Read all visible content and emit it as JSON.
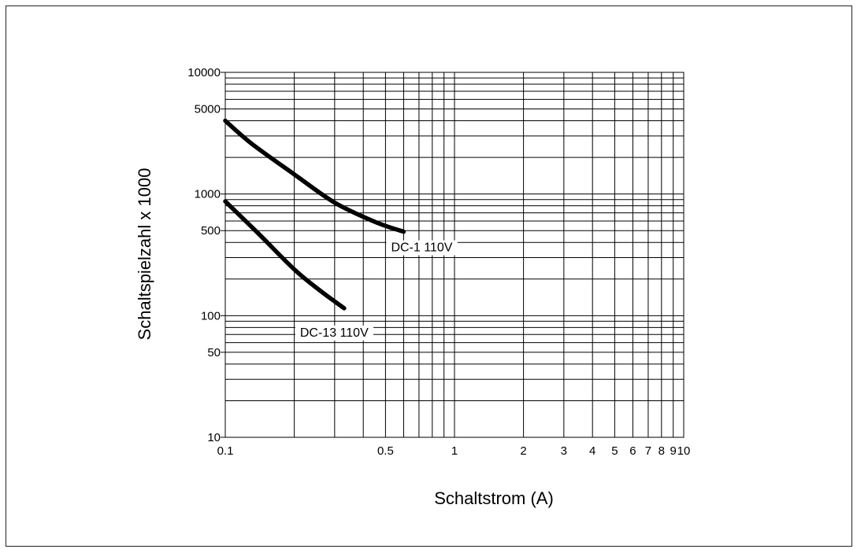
{
  "chart_data": {
    "type": "line",
    "xlabel": "Schaltstrom (A)",
    "ylabel": "Schaltspielzahl x 1000",
    "x_scale": "log",
    "y_scale": "log",
    "xlim": [
      0.1,
      10
    ],
    "ylim": [
      10,
      10000
    ],
    "grid": true,
    "x_ticks": [
      {
        "value": 0.1,
        "label": "0.1"
      },
      {
        "value": 0.5,
        "label": "0.5"
      },
      {
        "value": 1,
        "label": "1"
      },
      {
        "value": 2,
        "label": "2"
      },
      {
        "value": 3,
        "label": "3"
      },
      {
        "value": 4,
        "label": "4"
      },
      {
        "value": 5,
        "label": "5"
      },
      {
        "value": 6,
        "label": "6"
      },
      {
        "value": 7,
        "label": "7"
      },
      {
        "value": 8,
        "label": "8"
      },
      {
        "value": 9,
        "label": "9"
      },
      {
        "value": 10,
        "label": "10"
      }
    ],
    "y_ticks": [
      {
        "value": 10,
        "label": "10"
      },
      {
        "value": 50,
        "label": "50"
      },
      {
        "value": 100,
        "label": "100"
      },
      {
        "value": 500,
        "label": "500"
      },
      {
        "value": 1000,
        "label": "1000"
      },
      {
        "value": 5000,
        "label": "5000"
      },
      {
        "value": 10000,
        "label": "10000"
      }
    ],
    "x_grid": [
      0.1,
      0.2,
      0.3,
      0.4,
      0.5,
      0.6,
      0.7,
      0.8,
      0.9,
      1,
      2,
      3,
      4,
      5,
      6,
      7,
      8,
      9,
      10
    ],
    "y_grid": [
      10,
      20,
      30,
      40,
      50,
      60,
      70,
      80,
      90,
      100,
      200,
      300,
      400,
      500,
      600,
      700,
      800,
      900,
      1000,
      2000,
      3000,
      4000,
      5000,
      6000,
      7000,
      8000,
      9000,
      10000
    ],
    "series": [
      {
        "name": "DC-1 110V",
        "color": "#000000",
        "points": [
          [
            0.1,
            4000
          ],
          [
            0.13,
            2600
          ],
          [
            0.2,
            1450
          ],
          [
            0.3,
            850
          ],
          [
            0.45,
            590
          ],
          [
            0.6,
            490
          ]
        ]
      },
      {
        "name": "DC-13 110V",
        "color": "#000000",
        "points": [
          [
            0.1,
            870
          ],
          [
            0.14,
            470
          ],
          [
            0.2,
            240
          ],
          [
            0.26,
            160
          ],
          [
            0.33,
            115
          ]
        ]
      }
    ]
  }
}
